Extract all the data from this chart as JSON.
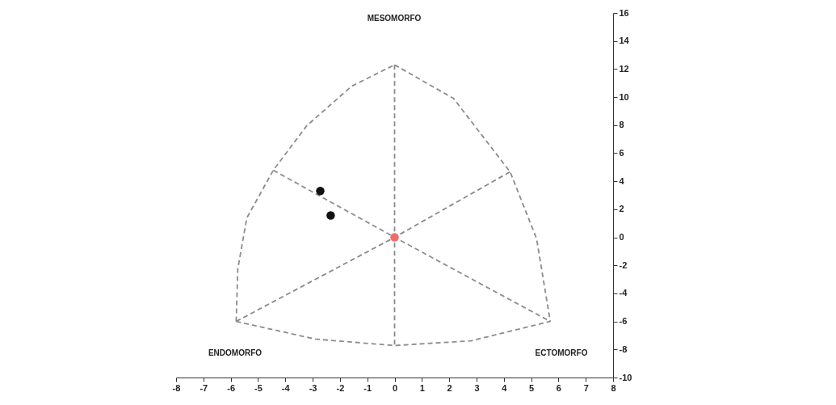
{
  "chart_data": {
    "type": "scatter",
    "xlim": [
      -8,
      8
    ],
    "ylim": [
      -10,
      16
    ],
    "xticks": [
      -8,
      -7,
      -6,
      -5,
      -4,
      -3,
      -2,
      -1,
      0,
      1,
      2,
      3,
      4,
      5,
      6,
      7,
      8
    ],
    "yticks": [
      -10,
      -8,
      -6,
      -4,
      -2,
      0,
      2,
      4,
      6,
      8,
      10,
      12,
      14,
      16
    ],
    "series": [
      {
        "type": "line",
        "line_style": "dashed",
        "color": "#8c8c8c",
        "x": [
          -5.8,
          -5.74,
          -5.41,
          -4.44,
          -3.22,
          -1.57,
          0
        ],
        "values": [
          -6,
          -2.25,
          1.38,
          4.78,
          7.95,
          10.78,
          12.3
        ]
      },
      {
        "type": "line",
        "line_style": "dashed",
        "color": "#8b8b8b",
        "x": [
          0,
          2.16,
          4.23,
          5.2,
          5.7
        ],
        "values": [
          12.3,
          9.9,
          4.67,
          -0.1,
          -6
        ]
      },
      {
        "type": "line",
        "line_style": "dashed",
        "color": "#8d8d8d",
        "x": [
          -5.8,
          -2.9,
          0,
          2.8,
          5.7
        ],
        "values": [
          -6,
          -7.26,
          -7.72,
          -7.38,
          -6
        ]
      },
      {
        "type": "line",
        "line_style": "dashed",
        "color": "#8a8a8a",
        "x": [
          0,
          0,
          0
        ],
        "values": [
          12.3,
          0,
          -7.72
        ]
      },
      {
        "type": "line",
        "line_style": "dashed",
        "color": "#8e8e8e",
        "x": [
          -4.44,
          0,
          5.7
        ],
        "values": [
          4.78,
          0,
          -6
        ]
      },
      {
        "type": "line",
        "line_style": "dashed",
        "color": "#898989",
        "x": [
          -5.8,
          0,
          4.23
        ],
        "values": [
          -6,
          0,
          4.67
        ]
      },
      {
        "marker": "circle",
        "color": "#111111",
        "x": [
          -2.72,
          -2.34
        ],
        "values": [
          3.3,
          1.56
        ]
      },
      {
        "marker": "circle",
        "color": "#f26b6b",
        "x": [
          0
        ],
        "values": [
          0
        ]
      }
    ],
    "annotations": [
      "MESOMORFO",
      "ENDOMORFO",
      "ECTOMORFO"
    ]
  }
}
